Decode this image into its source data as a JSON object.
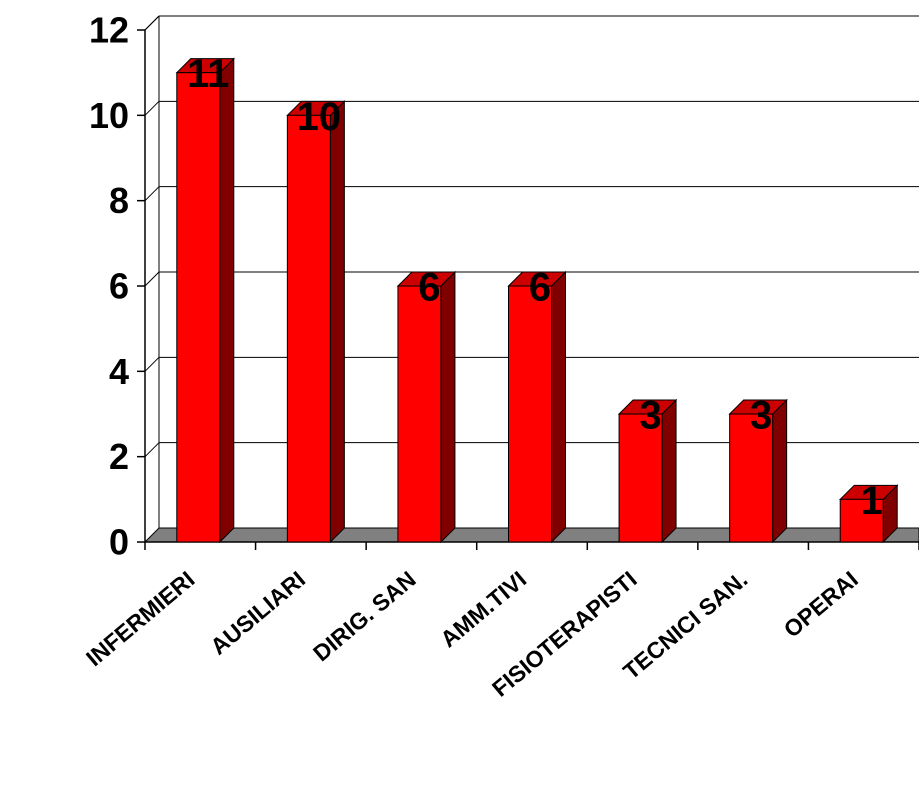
{
  "chart_data": {
    "type": "bar",
    "style": "3d-column",
    "categories": [
      "INFERMIERI",
      "AUSILIARI",
      "DIRIG. SAN",
      "AMM.TIVI",
      "FISIOTERAPISTI",
      "TECNICI SAN.",
      "OPERAI"
    ],
    "values": [
      11,
      10,
      6,
      6,
      3,
      3,
      1
    ],
    "data_labels": [
      "11",
      "10",
      "6",
      "6",
      "3",
      "3",
      "1"
    ],
    "ylim": [
      0,
      12
    ],
    "yticks": [
      0,
      2,
      4,
      6,
      8,
      10,
      12
    ],
    "ytick_labels": [
      "0",
      "2",
      "4",
      "6",
      "8",
      "10",
      "12"
    ],
    "grid": true,
    "legend": "none",
    "title": "",
    "xlabel": "",
    "ylabel": "",
    "colors": {
      "bar_front": "#ff0000",
      "bar_side": "#800000",
      "bar_top": "#cc0000",
      "floor": "#808080",
      "gridline": "#000000"
    }
  }
}
